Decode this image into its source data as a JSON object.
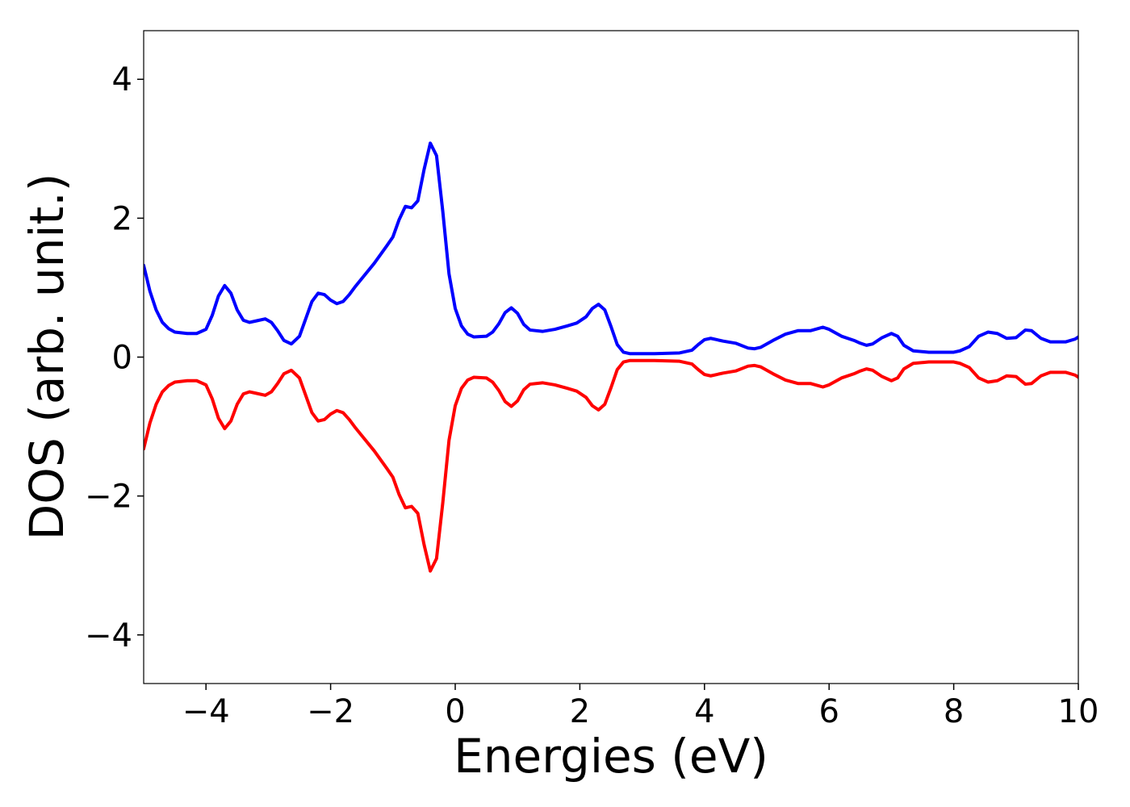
{
  "chart_data": {
    "type": "line",
    "title": "",
    "xlabel": "Energies (eV)",
    "ylabel": "DOS (arb. unit.)",
    "xlim": [
      -5,
      10
    ],
    "ylim": [
      -4.7,
      4.7
    ],
    "xticks": [
      -4,
      -2,
      0,
      2,
      4,
      6,
      8,
      10
    ],
    "xtick_labels": [
      "−4",
      "−2",
      "0",
      "2",
      "4",
      "6",
      "8",
      "10"
    ],
    "yticks": [
      -4,
      -2,
      0,
      2,
      4
    ],
    "ytick_labels": [
      "−4",
      "−2",
      "0",
      "2",
      "4"
    ],
    "grid": false,
    "legend": "none",
    "series": [
      {
        "color": "#0000ff",
        "points": [
          [
            -5.0,
            1.32
          ],
          [
            -4.9,
            0.95
          ],
          [
            -4.8,
            0.68
          ],
          [
            -4.7,
            0.5
          ],
          [
            -4.6,
            0.41
          ],
          [
            -4.5,
            0.36
          ],
          [
            -4.3,
            0.34
          ],
          [
            -4.15,
            0.34
          ],
          [
            -4.0,
            0.4
          ],
          [
            -3.9,
            0.6
          ],
          [
            -3.8,
            0.88
          ],
          [
            -3.7,
            1.03
          ],
          [
            -3.6,
            0.92
          ],
          [
            -3.5,
            0.68
          ],
          [
            -3.4,
            0.53
          ],
          [
            -3.3,
            0.5
          ],
          [
            -3.2,
            0.52
          ],
          [
            -3.05,
            0.55
          ],
          [
            -2.95,
            0.5
          ],
          [
            -2.85,
            0.38
          ],
          [
            -2.75,
            0.24
          ],
          [
            -2.63,
            0.19
          ],
          [
            -2.5,
            0.3
          ],
          [
            -2.4,
            0.55
          ],
          [
            -2.3,
            0.8
          ],
          [
            -2.2,
            0.92
          ],
          [
            -2.1,
            0.9
          ],
          [
            -2.0,
            0.82
          ],
          [
            -1.9,
            0.77
          ],
          [
            -1.8,
            0.8
          ],
          [
            -1.7,
            0.9
          ],
          [
            -1.6,
            1.02
          ],
          [
            -1.5,
            1.13
          ],
          [
            -1.3,
            1.35
          ],
          [
            -1.1,
            1.6
          ],
          [
            -1.0,
            1.73
          ],
          [
            -0.9,
            1.98
          ],
          [
            -0.8,
            2.17
          ],
          [
            -0.7,
            2.15
          ],
          [
            -0.6,
            2.25
          ],
          [
            -0.5,
            2.7
          ],
          [
            -0.4,
            3.08
          ],
          [
            -0.3,
            2.9
          ],
          [
            -0.2,
            2.1
          ],
          [
            -0.1,
            1.2
          ],
          [
            0.0,
            0.7
          ],
          [
            0.1,
            0.45
          ],
          [
            0.2,
            0.33
          ],
          [
            0.3,
            0.29
          ],
          [
            0.5,
            0.3
          ],
          [
            0.6,
            0.36
          ],
          [
            0.7,
            0.48
          ],
          [
            0.8,
            0.64
          ],
          [
            0.9,
            0.71
          ],
          [
            1.0,
            0.63
          ],
          [
            1.1,
            0.47
          ],
          [
            1.2,
            0.39
          ],
          [
            1.4,
            0.37
          ],
          [
            1.6,
            0.4
          ],
          [
            1.8,
            0.45
          ],
          [
            1.95,
            0.49
          ],
          [
            2.1,
            0.58
          ],
          [
            2.2,
            0.7
          ],
          [
            2.3,
            0.76
          ],
          [
            2.4,
            0.68
          ],
          [
            2.5,
            0.44
          ],
          [
            2.6,
            0.18
          ],
          [
            2.7,
            0.07
          ],
          [
            2.8,
            0.05
          ],
          [
            3.2,
            0.05
          ],
          [
            3.6,
            0.06
          ],
          [
            3.8,
            0.1
          ],
          [
            3.9,
            0.18
          ],
          [
            4.0,
            0.25
          ],
          [
            4.1,
            0.27
          ],
          [
            4.2,
            0.25
          ],
          [
            4.3,
            0.23
          ],
          [
            4.5,
            0.2
          ],
          [
            4.7,
            0.13
          ],
          [
            4.8,
            0.12
          ],
          [
            4.9,
            0.14
          ],
          [
            5.1,
            0.24
          ],
          [
            5.3,
            0.33
          ],
          [
            5.5,
            0.38
          ],
          [
            5.7,
            0.38
          ],
          [
            5.9,
            0.43
          ],
          [
            6.0,
            0.4
          ],
          [
            6.2,
            0.3
          ],
          [
            6.4,
            0.24
          ],
          [
            6.5,
            0.2
          ],
          [
            6.6,
            0.17
          ],
          [
            6.7,
            0.19
          ],
          [
            6.85,
            0.28
          ],
          [
            7.0,
            0.34
          ],
          [
            7.1,
            0.3
          ],
          [
            7.2,
            0.17
          ],
          [
            7.35,
            0.09
          ],
          [
            7.6,
            0.07
          ],
          [
            8.0,
            0.07
          ],
          [
            8.1,
            0.09
          ],
          [
            8.25,
            0.15
          ],
          [
            8.4,
            0.3
          ],
          [
            8.55,
            0.36
          ],
          [
            8.7,
            0.34
          ],
          [
            8.85,
            0.27
          ],
          [
            9.0,
            0.28
          ],
          [
            9.15,
            0.39
          ],
          [
            9.25,
            0.38
          ],
          [
            9.4,
            0.27
          ],
          [
            9.55,
            0.22
          ],
          [
            9.8,
            0.22
          ],
          [
            9.95,
            0.26
          ],
          [
            10.0,
            0.29
          ]
        ]
      },
      {
        "color": "#ff0000",
        "points": [
          [
            -5.0,
            -1.32
          ],
          [
            -4.9,
            -0.95
          ],
          [
            -4.8,
            -0.68
          ],
          [
            -4.7,
            -0.5
          ],
          [
            -4.6,
            -0.41
          ],
          [
            -4.5,
            -0.36
          ],
          [
            -4.3,
            -0.34
          ],
          [
            -4.15,
            -0.34
          ],
          [
            -4.0,
            -0.4
          ],
          [
            -3.9,
            -0.6
          ],
          [
            -3.8,
            -0.88
          ],
          [
            -3.7,
            -1.03
          ],
          [
            -3.6,
            -0.92
          ],
          [
            -3.5,
            -0.68
          ],
          [
            -3.4,
            -0.53
          ],
          [
            -3.3,
            -0.5
          ],
          [
            -3.2,
            -0.52
          ],
          [
            -3.05,
            -0.55
          ],
          [
            -2.95,
            -0.5
          ],
          [
            -2.85,
            -0.38
          ],
          [
            -2.75,
            -0.24
          ],
          [
            -2.63,
            -0.19
          ],
          [
            -2.5,
            -0.3
          ],
          [
            -2.4,
            -0.55
          ],
          [
            -2.3,
            -0.8
          ],
          [
            -2.2,
            -0.92
          ],
          [
            -2.1,
            -0.9
          ],
          [
            -2.0,
            -0.82
          ],
          [
            -1.9,
            -0.77
          ],
          [
            -1.8,
            -0.8
          ],
          [
            -1.7,
            -0.9
          ],
          [
            -1.6,
            -1.02
          ],
          [
            -1.5,
            -1.13
          ],
          [
            -1.3,
            -1.35
          ],
          [
            -1.1,
            -1.6
          ],
          [
            -1.0,
            -1.73
          ],
          [
            -0.9,
            -1.98
          ],
          [
            -0.8,
            -2.17
          ],
          [
            -0.7,
            -2.15
          ],
          [
            -0.6,
            -2.25
          ],
          [
            -0.5,
            -2.7
          ],
          [
            -0.4,
            -3.08
          ],
          [
            -0.3,
            -2.9
          ],
          [
            -0.2,
            -2.1
          ],
          [
            -0.1,
            -1.2
          ],
          [
            0.0,
            -0.7
          ],
          [
            0.1,
            -0.45
          ],
          [
            0.2,
            -0.33
          ],
          [
            0.3,
            -0.29
          ],
          [
            0.5,
            -0.3
          ],
          [
            0.6,
            -0.36
          ],
          [
            0.7,
            -0.48
          ],
          [
            0.8,
            -0.64
          ],
          [
            0.9,
            -0.71
          ],
          [
            1.0,
            -0.63
          ],
          [
            1.1,
            -0.47
          ],
          [
            1.2,
            -0.39
          ],
          [
            1.4,
            -0.37
          ],
          [
            1.6,
            -0.4
          ],
          [
            1.8,
            -0.45
          ],
          [
            1.95,
            -0.49
          ],
          [
            2.1,
            -0.58
          ],
          [
            2.2,
            -0.7
          ],
          [
            2.3,
            -0.76
          ],
          [
            2.4,
            -0.68
          ],
          [
            2.5,
            -0.44
          ],
          [
            2.6,
            -0.18
          ],
          [
            2.7,
            -0.07
          ],
          [
            2.8,
            -0.05
          ],
          [
            3.2,
            -0.05
          ],
          [
            3.6,
            -0.06
          ],
          [
            3.8,
            -0.1
          ],
          [
            3.9,
            -0.18
          ],
          [
            4.0,
            -0.25
          ],
          [
            4.1,
            -0.27
          ],
          [
            4.2,
            -0.25
          ],
          [
            4.3,
            -0.23
          ],
          [
            4.5,
            -0.2
          ],
          [
            4.7,
            -0.13
          ],
          [
            4.8,
            -0.12
          ],
          [
            4.9,
            -0.14
          ],
          [
            5.1,
            -0.24
          ],
          [
            5.3,
            -0.33
          ],
          [
            5.5,
            -0.38
          ],
          [
            5.7,
            -0.38
          ],
          [
            5.9,
            -0.43
          ],
          [
            6.0,
            -0.4
          ],
          [
            6.2,
            -0.3
          ],
          [
            6.4,
            -0.24
          ],
          [
            6.5,
            -0.2
          ],
          [
            6.6,
            -0.17
          ],
          [
            6.7,
            -0.19
          ],
          [
            6.85,
            -0.28
          ],
          [
            7.0,
            -0.34
          ],
          [
            7.1,
            -0.3
          ],
          [
            7.2,
            -0.17
          ],
          [
            7.35,
            -0.09
          ],
          [
            7.6,
            -0.07
          ],
          [
            8.0,
            -0.07
          ],
          [
            8.1,
            -0.09
          ],
          [
            8.25,
            -0.15
          ],
          [
            8.4,
            -0.3
          ],
          [
            8.55,
            -0.36
          ],
          [
            8.7,
            -0.34
          ],
          [
            8.85,
            -0.27
          ],
          [
            9.0,
            -0.28
          ],
          [
            9.15,
            -0.39
          ],
          [
            9.25,
            -0.38
          ],
          [
            9.4,
            -0.27
          ],
          [
            9.55,
            -0.22
          ],
          [
            9.8,
            -0.22
          ],
          [
            9.95,
            -0.26
          ],
          [
            10.0,
            -0.29
          ]
        ]
      }
    ]
  }
}
